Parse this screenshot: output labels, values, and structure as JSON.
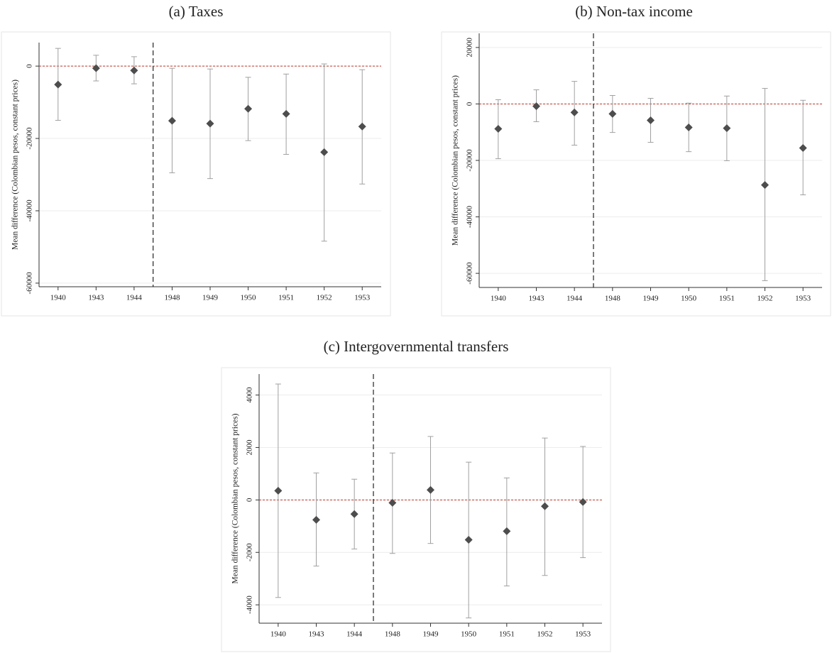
{
  "chart_data": [
    {
      "type": "errorbar",
      "title": "(a) Taxes",
      "y_label": "Mean difference (Colombian pesos, constant prices)",
      "categories": [
        "1940",
        "1943",
        "1944",
        "1948",
        "1949",
        "1950",
        "1951",
        "1952",
        "1953"
      ],
      "series": [
        {
          "color": "#4d4d4d",
          "error_color": "#a0a0a0",
          "values": [
            -5100,
            -600,
            -1200,
            -15100,
            -15900,
            -11800,
            -13200,
            -23800,
            -16700
          ],
          "ci_low": [
            -15000,
            -4100,
            -4900,
            -29500,
            -31100,
            -20600,
            -24400,
            -48400,
            -32600
          ],
          "ci_high": [
            4900,
            3000,
            2600,
            -600,
            -800,
            -3100,
            -2200,
            600,
            -1000
          ]
        }
      ],
      "ylim": [
        -61000,
        6500
      ],
      "yticks": [
        -60000,
        -40000,
        -20000,
        0
      ],
      "grid": true,
      "hline": 0,
      "hline_color": "#c0392b",
      "vline_after_category": "1944"
    },
    {
      "type": "errorbar",
      "title": "(b) Non-tax income",
      "y_label": "Mean difference (Colombian pesos, constant prices)",
      "categories": [
        "1940",
        "1943",
        "1944",
        "1948",
        "1949",
        "1950",
        "1951",
        "1952",
        "1953"
      ],
      "series": [
        {
          "color": "#4d4d4d",
          "error_color": "#a0a0a0",
          "values": [
            -8800,
            -800,
            -3000,
            -3500,
            -5800,
            -8300,
            -8600,
            -28700,
            -15600
          ],
          "ci_low": [
            -19400,
            -6300,
            -14600,
            -10100,
            -13600,
            -16900,
            -20100,
            -62600,
            -32200
          ],
          "ci_high": [
            1500,
            5000,
            8000,
            3000,
            2000,
            300,
            2800,
            5500,
            1300
          ]
        }
      ],
      "ylim": [
        -65000,
        25000
      ],
      "yticks": [
        -60000,
        -40000,
        -20000,
        0,
        20000
      ],
      "grid": true,
      "hline": 0,
      "hline_color": "#c0392b",
      "vline_after_category": "1944"
    },
    {
      "type": "errorbar",
      "title": "(c) Intergovernmental transfers",
      "y_label": "Mean difference (Colombian pesos, constant prices)",
      "categories": [
        "1940",
        "1943",
        "1944",
        "1948",
        "1949",
        "1950",
        "1951",
        "1952",
        "1953"
      ],
      "series": [
        {
          "color": "#4d4d4d",
          "error_color": "#a0a0a0",
          "values": [
            350,
            -760,
            -540,
            -110,
            380,
            -1520,
            -1190,
            -240,
            -80
          ],
          "ci_low": [
            -3720,
            -2520,
            -1870,
            -2040,
            -1660,
            -4500,
            -3280,
            -2880,
            -2200
          ],
          "ci_high": [
            4420,
            1030,
            790,
            1790,
            2420,
            1440,
            840,
            2360,
            2040
          ]
        }
      ],
      "ylim": [
        -4700,
        4800
      ],
      "yticks": [
        -4000,
        -2000,
        0,
        2000,
        4000
      ],
      "grid": true,
      "hline": 0,
      "hline_color": "#c0392b",
      "vline_after_category": "1944"
    }
  ]
}
